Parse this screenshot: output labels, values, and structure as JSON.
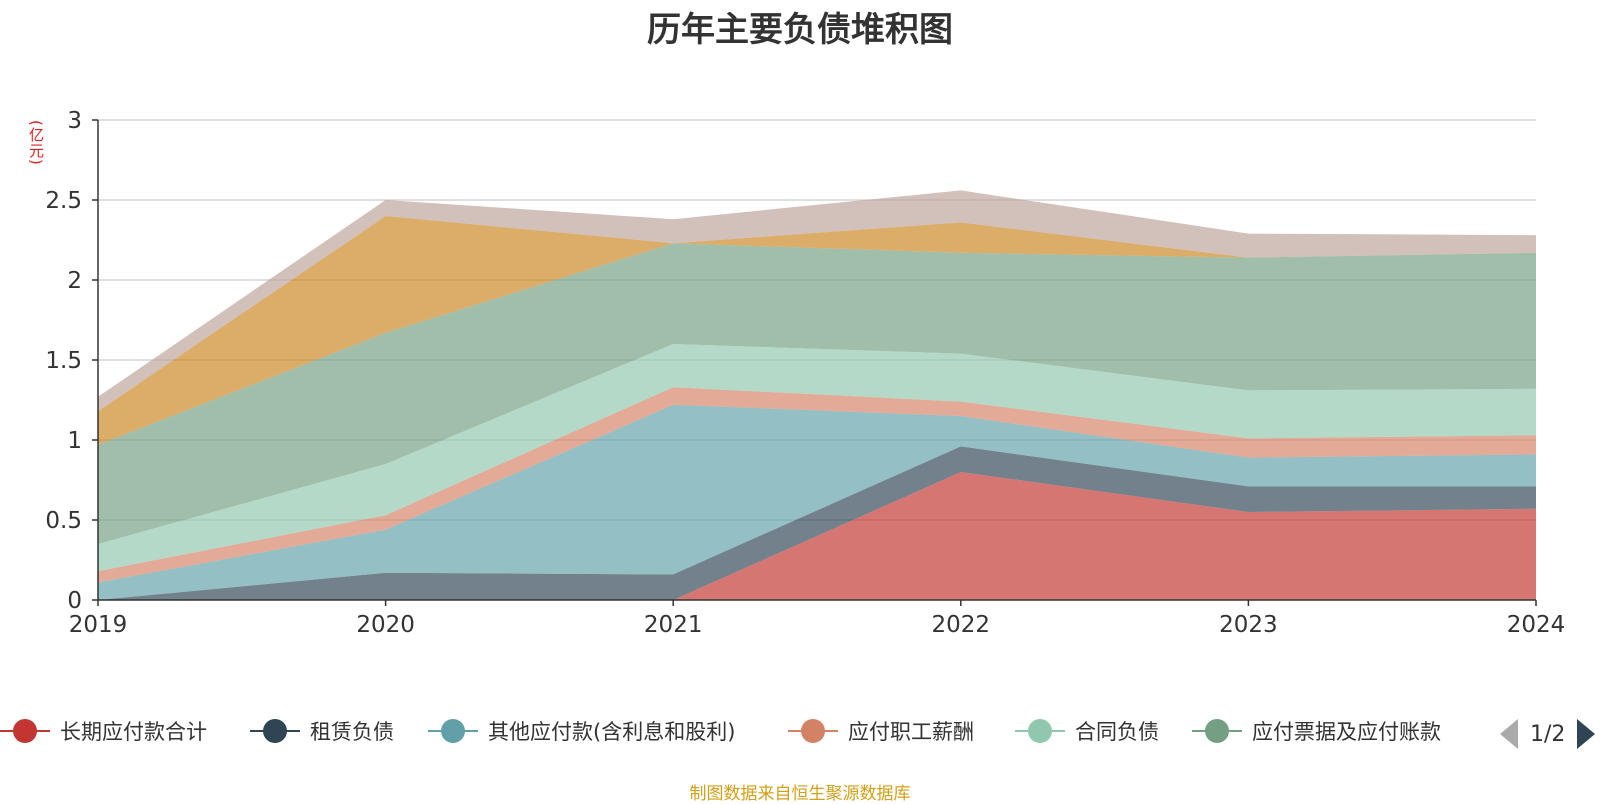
{
  "chart_data": {
    "type": "area",
    "title": "历年主要负债堆积图",
    "ylabel": "(亿元)",
    "x": [
      "2019",
      "2020",
      "2021",
      "2022",
      "2023",
      "2024"
    ],
    "ylim": [
      0,
      3
    ],
    "yticks": [
      "0",
      "0.5",
      "1",
      "1.5",
      "2",
      "2.5",
      "3"
    ],
    "stacked": true,
    "grid": true,
    "series": [
      {
        "name": "长期应付款合计",
        "color": "#c23531",
        "values": [
          0,
          0,
          0,
          0.8,
          0.55,
          0.57
        ]
      },
      {
        "name": "租赁负债",
        "color": "#2f4554",
        "values": [
          0,
          0.17,
          0.16,
          0.16,
          0.16,
          0.14
        ]
      },
      {
        "name": "其他应付款(含利息和股利)",
        "color": "#61a0a8",
        "values": [
          0.11,
          0.27,
          1.06,
          0.19,
          0.18,
          0.2
        ]
      },
      {
        "name": "应付职工薪酬",
        "color": "#d48265",
        "values": [
          0.07,
          0.09,
          0.11,
          0.09,
          0.12,
          0.12
        ]
      },
      {
        "name": "合同负债",
        "color": "#91c7ae",
        "values": [
          0.17,
          0.32,
          0.27,
          0.3,
          0.3,
          0.29
        ]
      },
      {
        "name": "应付票据及应付账款",
        "color": "#749f83",
        "values": [
          0.62,
          0.82,
          0.63,
          0.63,
          0.83,
          0.85
        ]
      },
      {
        "name": "",
        "color": "#ca8622",
        "values": [
          0.21,
          0.73,
          0.0,
          0.19,
          0.0,
          0.0
        ]
      },
      {
        "name": "",
        "color": "#bda29a",
        "values": [
          0.09,
          0.1,
          0.15,
          0.2,
          0.15,
          0.11
        ]
      }
    ]
  },
  "legend": {
    "items": [
      {
        "label": "长期应付款合计",
        "color": "#c23531"
      },
      {
        "label": "租赁负债",
        "color": "#2f4554"
      },
      {
        "label": "其他应付款(含利息和股利)",
        "color": "#61a0a8"
      },
      {
        "label": "应付职工薪酬",
        "color": "#d48265"
      },
      {
        "label": "合同负债",
        "color": "#91c7ae"
      },
      {
        "label": "应付票据及应付账款",
        "color": "#749f83"
      }
    ],
    "page": "1/2"
  },
  "source_note": "制图数据来自恒生聚源数据库"
}
